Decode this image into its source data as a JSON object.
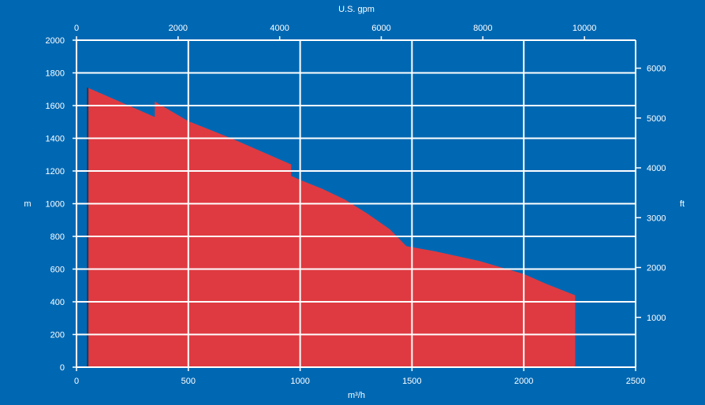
{
  "chart_data": {
    "type": "area",
    "title": "",
    "xlabel": "m³/h",
    "ylabel": "m",
    "x2label": "U.S. gpm",
    "y2label": "ft",
    "xlim": [
      0,
      2500
    ],
    "ylim": [
      0,
      2000
    ],
    "x2lim": [
      0,
      11007
    ],
    "y2lim": [
      0,
      6562
    ],
    "x_ticks": [
      0,
      500,
      1000,
      1500,
      2000,
      2500
    ],
    "y_ticks": [
      0,
      200,
      400,
      600,
      800,
      1000,
      1200,
      1400,
      1600,
      1800,
      2000
    ],
    "x2_ticks": [
      0,
      2000,
      4000,
      6000,
      8000,
      10000
    ],
    "y2_ticks": [
      1000,
      2000,
      3000,
      4000,
      5000,
      6000
    ],
    "grid": true,
    "colors": {
      "background": "#0068b3",
      "fill": "#df3a41",
      "grid": "#ffffff",
      "edge": "#1c3a5a"
    },
    "series": [
      {
        "x": [
          50,
          50,
          350,
          350,
          355,
          500,
          700,
          960,
          960,
          1000,
          1100,
          1200,
          1300,
          1400,
          1475,
          1600,
          1800,
          2000,
          2100,
          2230,
          2230
        ],
        "y": [
          0,
          1710,
          1530,
          1625,
          1620,
          1505,
          1395,
          1240,
          1170,
          1145,
          1090,
          1025,
          940,
          845,
          740,
          710,
          650,
          570,
          510,
          440,
          0
        ]
      }
    ]
  }
}
